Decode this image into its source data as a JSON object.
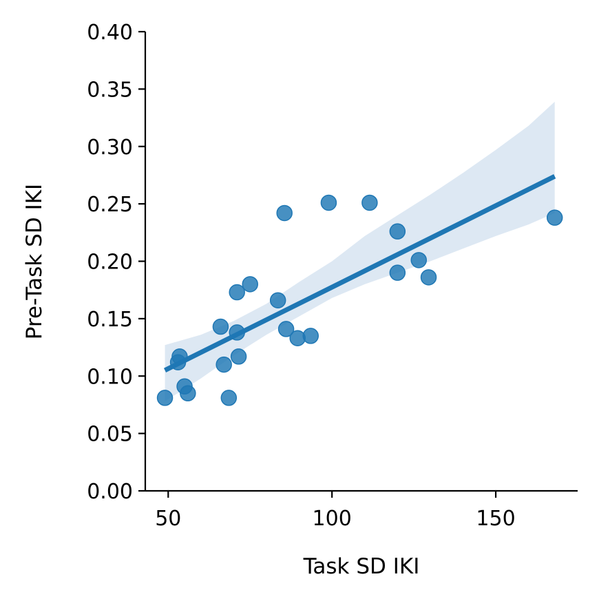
{
  "chart_data": {
    "type": "scatter",
    "title": "",
    "xlabel": "Task SD IKI",
    "ylabel": "Pre-Task SD IKI",
    "xlim": [
      43,
      175
    ],
    "ylim": [
      0,
      0.4
    ],
    "x_ticks": [
      50,
      100,
      150
    ],
    "x_tick_labels": [
      "50",
      "100",
      "150"
    ],
    "y_ticks": [
      0,
      0.05,
      0.1,
      0.15,
      0.2,
      0.25,
      0.3,
      0.35,
      0.4
    ],
    "y_tick_labels": [
      "0.00",
      "0.05",
      "0.10",
      "0.15",
      "0.20",
      "0.25",
      "0.30",
      "0.35",
      "0.40"
    ],
    "grid": false,
    "legend": "none",
    "colors": {
      "points": "#1f77b4",
      "line": "#1f77b4",
      "band": "#dde8f3"
    },
    "points": [
      {
        "x": 49,
        "y": 0.081
      },
      {
        "x": 53,
        "y": 0.112
      },
      {
        "x": 53.5,
        "y": 0.117
      },
      {
        "x": 55,
        "y": 0.091
      },
      {
        "x": 56,
        "y": 0.085
      },
      {
        "x": 66,
        "y": 0.143
      },
      {
        "x": 67,
        "y": 0.11
      },
      {
        "x": 68.5,
        "y": 0.081
      },
      {
        "x": 71,
        "y": 0.138
      },
      {
        "x": 71,
        "y": 0.173
      },
      {
        "x": 71.5,
        "y": 0.117
      },
      {
        "x": 75,
        "y": 0.18
      },
      {
        "x": 83.5,
        "y": 0.166
      },
      {
        "x": 85.5,
        "y": 0.242
      },
      {
        "x": 86,
        "y": 0.141
      },
      {
        "x": 89.5,
        "y": 0.133
      },
      {
        "x": 93.5,
        "y": 0.135
      },
      {
        "x": 99,
        "y": 0.251
      },
      {
        "x": 111.5,
        "y": 0.251
      },
      {
        "x": 120,
        "y": 0.226
      },
      {
        "x": 120,
        "y": 0.19
      },
      {
        "x": 126.5,
        "y": 0.201
      },
      {
        "x": 129.5,
        "y": 0.186
      },
      {
        "x": 168,
        "y": 0.238
      }
    ],
    "regression": {
      "x": [
        49,
        168
      ],
      "y": [
        0.105,
        0.274
      ]
    },
    "confidence_band": {
      "x": [
        49,
        60,
        70,
        80,
        90,
        100,
        110,
        120,
        130,
        140,
        150,
        160,
        168
      ],
      "upper": [
        0.127,
        0.136,
        0.148,
        0.163,
        0.182,
        0.2,
        0.222,
        0.24,
        0.258,
        0.277,
        0.297,
        0.318,
        0.339
      ],
      "lower": [
        0.078,
        0.098,
        0.118,
        0.136,
        0.152,
        0.168,
        0.18,
        0.19,
        0.2,
        0.211,
        0.222,
        0.232,
        0.242
      ]
    }
  }
}
